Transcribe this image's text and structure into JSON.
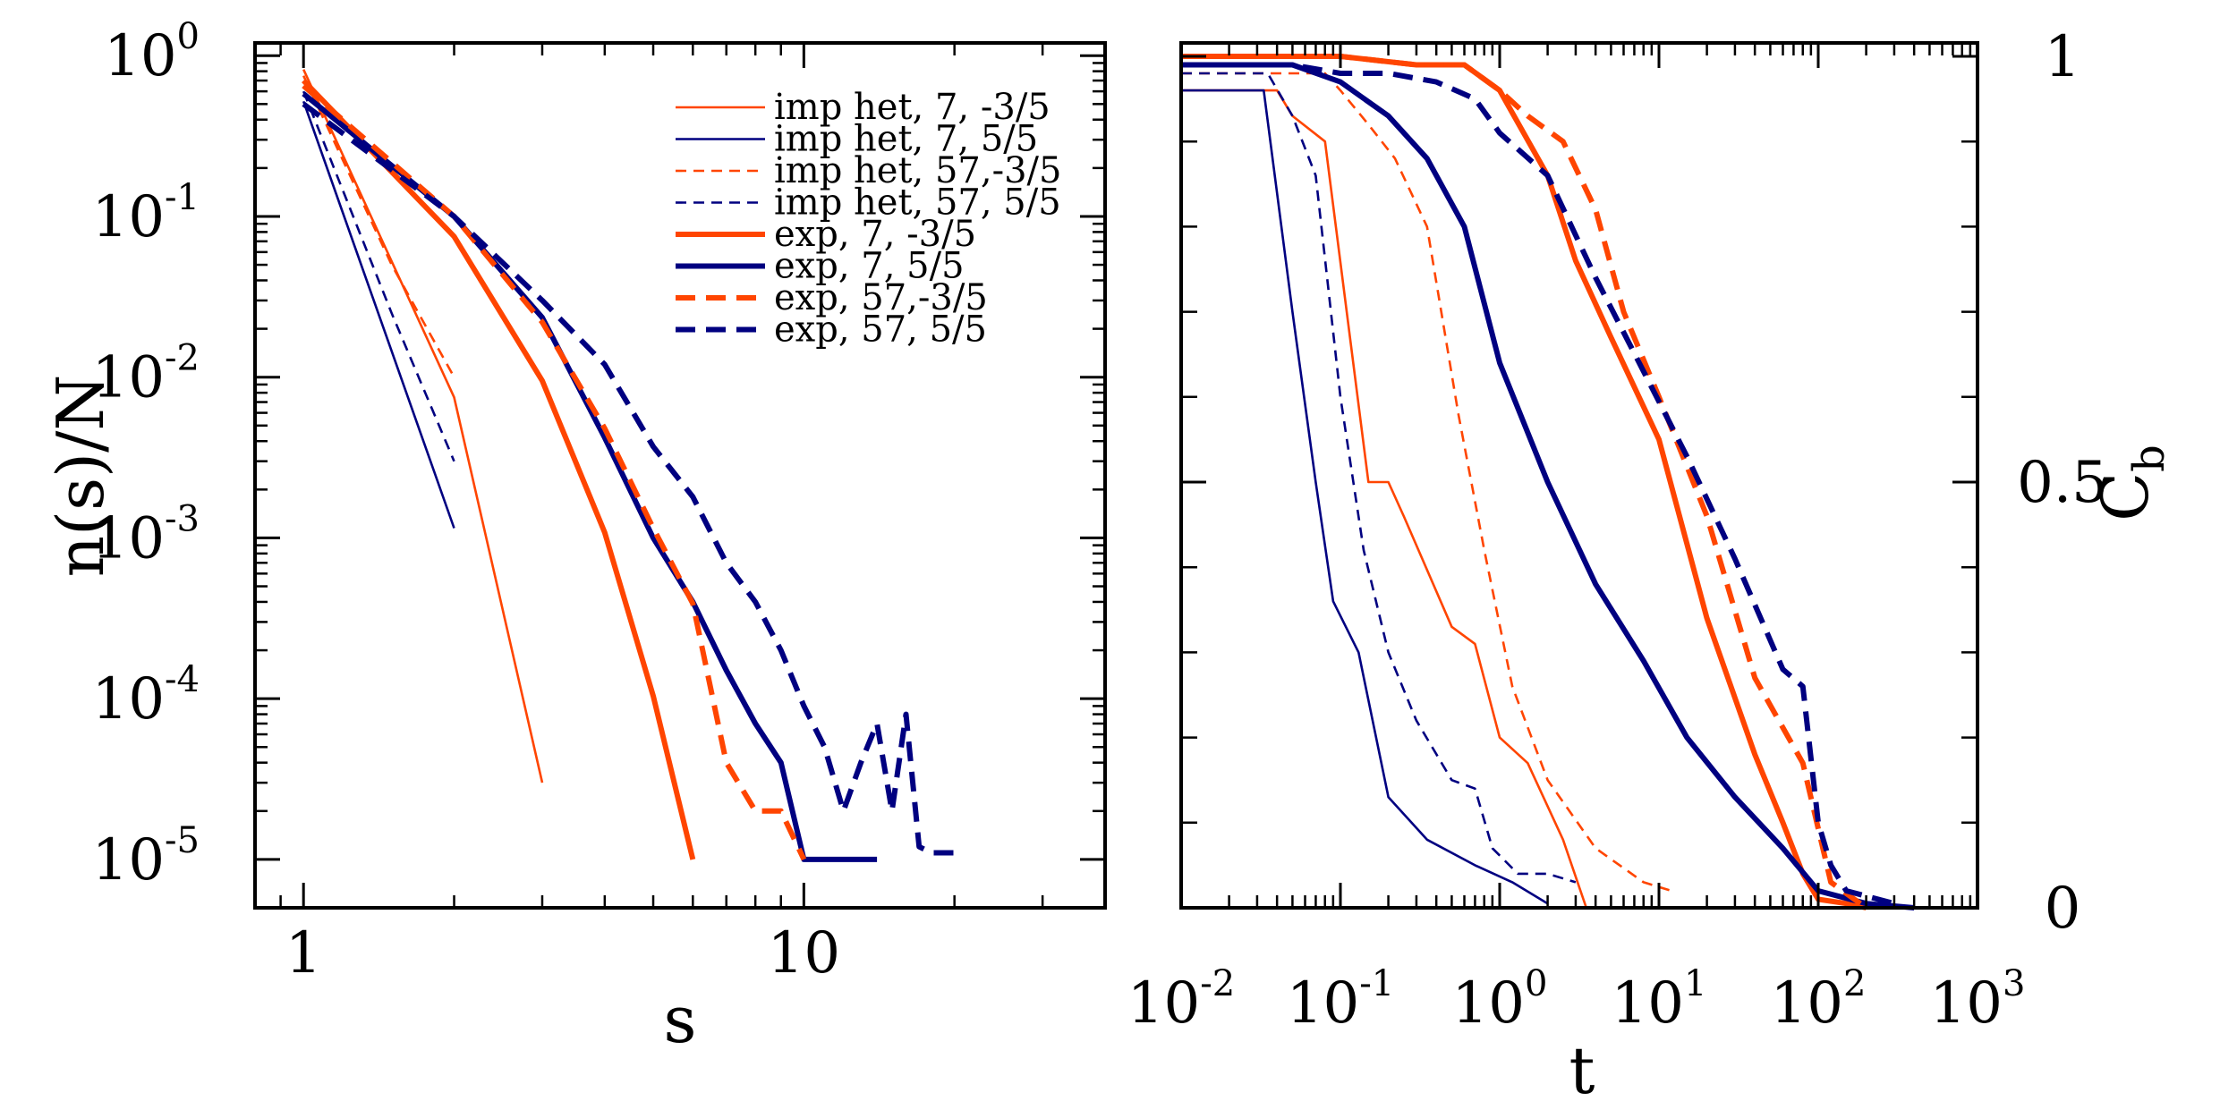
{
  "colors": {
    "orange": "#ff4500",
    "navy": "#000080",
    "axis": "#000000"
  },
  "chart_data": [
    {
      "type": "line",
      "panel": "left",
      "xscale": "log",
      "yscale": "log",
      "xlabel": "s",
      "ylabel": "n(s)/N",
      "xlim": [
        0.8,
        40
      ],
      "ylim": [
        5e-06,
        1.2
      ],
      "xticks": [
        {
          "base": "1",
          "exp": ""
        },
        {
          "base": "10",
          "exp": ""
        }
      ],
      "xtick_values": [
        1,
        10
      ],
      "yticks": [
        {
          "value": 1,
          "base": "10",
          "exp": "0"
        },
        {
          "value": 0.1,
          "base": "10",
          "exp": "-1"
        },
        {
          "value": 0.01,
          "base": "10",
          "exp": "-2"
        },
        {
          "value": 0.001,
          "base": "10",
          "exp": "-3"
        },
        {
          "value": 0.0001,
          "base": "10",
          "exp": "-4"
        },
        {
          "value": 1e-05,
          "base": "10",
          "exp": "-5"
        }
      ],
      "legend_position": "top-right",
      "series": [
        {
          "name": "imp het, 7,  -3/5",
          "color": "orange",
          "width": "thin",
          "dash": "solid",
          "x": [
            1,
            2,
            3
          ],
          "y": [
            0.82,
            0.0075,
            3e-05
          ]
        },
        {
          "name": "imp het, 7,   5/5",
          "color": "navy",
          "width": "thin",
          "dash": "solid",
          "x": [
            1,
            2
          ],
          "y": [
            0.52,
            0.00115
          ]
        },
        {
          "name": "imp het, 57,-3/5",
          "color": "orange",
          "width": "thin",
          "dash": "dashed",
          "x": [
            1,
            1.5,
            2
          ],
          "y": [
            0.75,
            0.05,
            0.01
          ]
        },
        {
          "name": "imp het, 57, 5/5",
          "color": "navy",
          "width": "thin",
          "dash": "dashed",
          "x": [
            1,
            1.5,
            2
          ],
          "y": [
            0.6,
            0.025,
            0.003
          ]
        },
        {
          "name": "exp, 7,  -3/5",
          "color": "orange",
          "width": "thick",
          "dash": "solid",
          "x": [
            1,
            2,
            3,
            4,
            5,
            6
          ],
          "y": [
            0.7,
            0.075,
            0.0095,
            0.00108,
            0.000104,
            1e-05
          ]
        },
        {
          "name": "exp, 7,   5/5",
          "color": "navy",
          "width": "thick",
          "dash": "solid",
          "x": [
            1,
            2,
            3,
            4,
            5,
            6,
            7,
            8,
            9,
            10,
            11,
            12,
            13,
            14
          ],
          "y": [
            0.58,
            0.1,
            0.0235,
            0.0042,
            0.001,
            0.0004,
            0.00015,
            7e-05,
            4e-05,
            1e-05,
            1e-05,
            1e-05,
            1e-05,
            1e-05
          ]
        },
        {
          "name": "exp, 57,-3/5",
          "color": "orange",
          "width": "thick",
          "dash": "dashed",
          "x": [
            1,
            2,
            3,
            4,
            5,
            6,
            7,
            8,
            9,
            10
          ],
          "y": [
            0.65,
            0.1,
            0.022,
            0.0048,
            0.00115,
            0.00039,
            4e-05,
            2e-05,
            2e-05,
            1e-05
          ]
        },
        {
          "name": "exp, 57, 5/5",
          "color": "navy",
          "width": "thick",
          "dash": "dashed",
          "x": [
            1,
            2,
            3,
            4,
            5,
            6,
            7,
            8,
            9,
            10,
            11,
            12,
            13,
            14,
            15,
            16,
            17,
            18,
            19,
            20
          ],
          "y": [
            0.5,
            0.1,
            0.03,
            0.012,
            0.0037,
            0.0018,
            0.0007,
            0.0004,
            0.0002,
            9e-05,
            5e-05,
            2e-05,
            4e-05,
            7e-05,
            2e-05,
            8e-05,
            1.2e-05,
            1.1e-05,
            1.1e-05,
            1.1e-05
          ]
        }
      ]
    },
    {
      "type": "line",
      "panel": "right",
      "xscale": "log",
      "yscale": "linear",
      "xlabel": "t",
      "ylabel": "C",
      "ylabel_sub": "b",
      "xlim": [
        0.01,
        1000
      ],
      "ylim": [
        0,
        1
      ],
      "xticks": [
        {
          "value": 0.01,
          "base": "10",
          "exp": "-2"
        },
        {
          "value": 0.1,
          "base": "10",
          "exp": "-1"
        },
        {
          "value": 1,
          "base": "10",
          "exp": "0"
        },
        {
          "value": 10,
          "base": "10",
          "exp": "1"
        },
        {
          "value": 100,
          "base": "10",
          "exp": "2"
        },
        {
          "value": 1000,
          "base": "10",
          "exp": "3"
        }
      ],
      "yticks": [
        {
          "value": 0,
          "label": "0"
        },
        {
          "value": 0.5,
          "label": "0.5"
        },
        {
          "value": 1,
          "label": "1"
        }
      ],
      "yaxis_side": "right",
      "series": [
        {
          "name": "imp het, 7,  -3/5",
          "color": "orange",
          "width": "thin",
          "dash": "solid",
          "x": [
            0.01,
            0.04,
            0.05,
            0.08,
            0.15,
            0.2,
            0.25,
            0.5,
            0.7,
            1,
            1.5,
            2.5,
            3.5
          ],
          "y": [
            0.96,
            0.96,
            0.93,
            0.9,
            0.5,
            0.5,
            0.46,
            0.33,
            0.31,
            0.2,
            0.17,
            0.08,
            0
          ]
        },
        {
          "name": "imp het, 7,   5/5",
          "color": "navy",
          "width": "thin",
          "dash": "solid",
          "x": [
            0.01,
            0.033,
            0.05,
            0.07,
            0.09,
            0.13,
            0.2,
            0.35,
            0.7,
            1.2,
            2
          ],
          "y": [
            0.96,
            0.96,
            0.7,
            0.5,
            0.36,
            0.3,
            0.13,
            0.08,
            0.05,
            0.03,
            0.005
          ]
        },
        {
          "name": "imp het, 57,-3/5",
          "color": "orange",
          "width": "thin",
          "dash": "dashed",
          "x": [
            0.01,
            0.08,
            0.1,
            0.15,
            0.22,
            0.35,
            0.55,
            0.8,
            1.2,
            2,
            4,
            8,
            12
          ],
          "y": [
            0.98,
            0.98,
            0.96,
            0.92,
            0.88,
            0.8,
            0.58,
            0.42,
            0.26,
            0.15,
            0.07,
            0.03,
            0.02
          ]
        },
        {
          "name": "imp het, 57, 5/5",
          "color": "navy",
          "width": "thin",
          "dash": "dashed",
          "x": [
            0.01,
            0.035,
            0.05,
            0.07,
            0.1,
            0.14,
            0.2,
            0.3,
            0.5,
            0.7,
            0.9,
            1.3,
            2,
            3
          ],
          "y": [
            0.98,
            0.98,
            0.93,
            0.86,
            0.6,
            0.42,
            0.3,
            0.22,
            0.15,
            0.14,
            0.07,
            0.04,
            0.04,
            0.03
          ]
        },
        {
          "name": "exp, 7,  -3/5",
          "color": "orange",
          "width": "thick",
          "dash": "solid",
          "x": [
            0.01,
            0.1,
            0.3,
            0.6,
            1,
            2,
            3,
            5,
            10,
            20,
            40,
            60,
            80,
            100,
            150,
            200
          ],
          "y": [
            1,
            1,
            0.99,
            0.99,
            0.96,
            0.86,
            0.76,
            0.67,
            0.55,
            0.34,
            0.18,
            0.1,
            0.04,
            0.01,
            0.005,
            0
          ]
        },
        {
          "name": "exp, 7,   5/5",
          "color": "navy",
          "width": "thick",
          "dash": "solid",
          "x": [
            0.01,
            0.05,
            0.1,
            0.2,
            0.35,
            0.6,
            1,
            2,
            4,
            8,
            15,
            30,
            60,
            100,
            200,
            400
          ],
          "y": [
            0.99,
            0.99,
            0.97,
            0.93,
            0.88,
            0.8,
            0.64,
            0.5,
            0.38,
            0.29,
            0.2,
            0.13,
            0.07,
            0.02,
            0.005,
            0
          ]
        },
        {
          "name": "exp, 57,-3/5",
          "color": "orange",
          "width": "thick",
          "dash": "dashed",
          "x": [
            0.01,
            0.1,
            0.3,
            0.6,
            1,
            1.5,
            2.5,
            4,
            6,
            10,
            20,
            40,
            80,
            120,
            200
          ],
          "y": [
            1,
            1,
            0.99,
            0.99,
            0.96,
            0.93,
            0.9,
            0.82,
            0.7,
            0.6,
            0.46,
            0.27,
            0.17,
            0.03,
            0
          ]
        },
        {
          "name": "exp, 57, 5/5",
          "color": "navy",
          "width": "thick",
          "dash": "dashed",
          "x": [
            0.01,
            0.05,
            0.1,
            0.2,
            0.4,
            0.7,
            1,
            2,
            4,
            8,
            15,
            30,
            60,
            80,
            100,
            120,
            150,
            300
          ],
          "y": [
            0.99,
            0.99,
            0.98,
            0.98,
            0.97,
            0.95,
            0.91,
            0.86,
            0.74,
            0.63,
            0.53,
            0.41,
            0.28,
            0.26,
            0.1,
            0.05,
            0.02,
            0.005
          ]
        }
      ]
    }
  ]
}
